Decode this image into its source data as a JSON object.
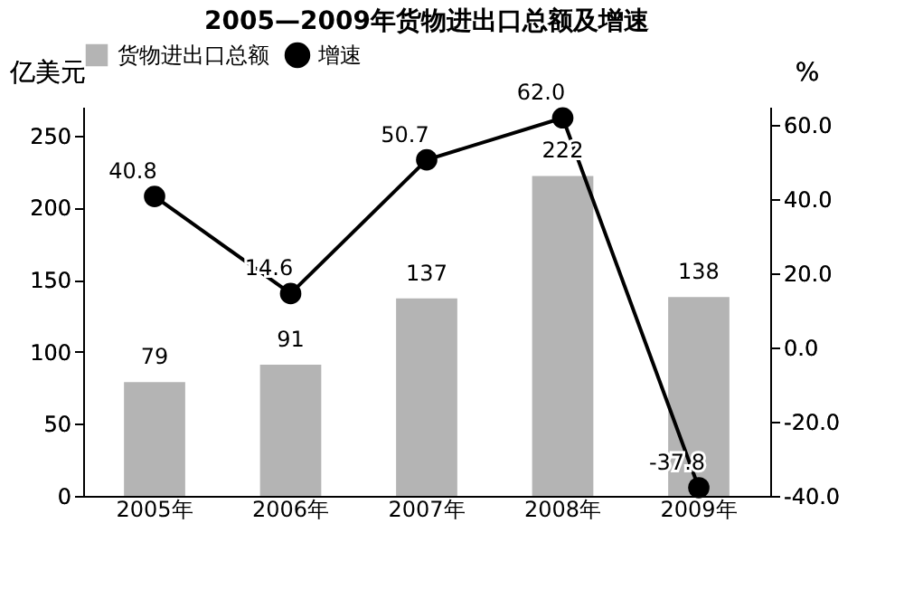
{
  "chart_data": {
    "type": "bar",
    "title": "2005—2009年货物进出口总额及增速",
    "categories": [
      "2005年",
      "2006年",
      "2007年",
      "2008年",
      "2009年"
    ],
    "series": [
      {
        "name": "货物进出口总额",
        "color": "#b4b4b4",
        "values": [
          79,
          91,
          137,
          222,
          138
        ]
      },
      {
        "name": "增速",
        "type": "line",
        "axis": "y2",
        "color": "#000000",
        "values": [
          40.8,
          14.6,
          50.7,
          62.0,
          -37.8
        ],
        "value_labels": [
          "40.8",
          "14.6",
          "50.7",
          "62.0",
          "-37.8"
        ]
      }
    ],
    "ylabel": "亿美元",
    "y2label": "%",
    "ylim": [
      0,
      270
    ],
    "yticks": [
      0,
      50,
      100,
      150,
      200,
      250
    ],
    "y2lim": [
      -40,
      65
    ],
    "y2ticks": [
      {
        "value": -40,
        "label": "-40.0"
      },
      {
        "value": -20,
        "label": "-20.0"
      },
      {
        "value": 0,
        "label": "0.0"
      },
      {
        "value": 20,
        "label": "20.0"
      },
      {
        "value": 40,
        "label": "40.0"
      },
      {
        "value": 60,
        "label": "60.0"
      }
    ],
    "data_labels": true,
    "legend": "top",
    "grid": false,
    "marker": "circle",
    "line_style": "solid"
  }
}
